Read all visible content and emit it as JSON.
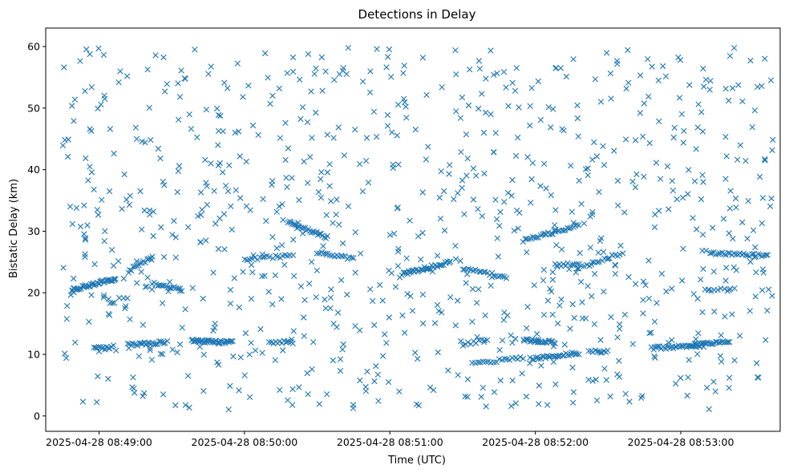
{
  "chart_data": {
    "type": "scatter",
    "title": "Detections in Delay",
    "xlabel": "Time (UTC)",
    "ylabel": "Bistatic Delay (km)",
    "marker": "x",
    "color": "#1f77b4",
    "grid": false,
    "legend": null,
    "xlim": [
      "2025-04-28 08:48:38",
      "2025-04-28 08:53:41"
    ],
    "ylim": [
      -2.5,
      63
    ],
    "xticks": [
      "2025-04-28 08:49:00",
      "2025-04-28 08:50:00",
      "2025-04-28 08:51:00",
      "2025-04-28 08:52:00",
      "2025-04-28 08:53:00"
    ],
    "yticks": [
      0,
      10,
      20,
      30,
      40,
      50,
      60
    ],
    "series": [
      {
        "tracks": [
          {
            "start": "2025-04-28 08:48:49",
            "end": "2025-04-28 08:49:07",
            "y0": 20.5,
            "y1": 22.3,
            "count": 40
          },
          {
            "start": "2025-04-28 08:48:58",
            "end": "2025-04-28 08:49:05",
            "y0": 11.0,
            "y1": 11.0,
            "count": 12
          },
          {
            "start": "2025-04-28 08:49:12",
            "end": "2025-04-28 08:49:28",
            "y0": 11.5,
            "y1": 12.0,
            "count": 25
          },
          {
            "start": "2025-04-28 08:49:12",
            "end": "2025-04-28 08:49:22",
            "y0": 23.5,
            "y1": 25.8,
            "count": 15
          },
          {
            "start": "2025-04-28 08:49:22",
            "end": "2025-04-28 08:49:34",
            "y0": 21.5,
            "y1": 20.5,
            "count": 18
          },
          {
            "start": "2025-04-28 08:49:38",
            "end": "2025-04-28 08:49:55",
            "y0": 12.2,
            "y1": 12.0,
            "count": 40
          },
          {
            "start": "2025-04-28 08:50:00",
            "end": "2025-04-28 08:50:20",
            "y0": 25.5,
            "y1": 26.0,
            "count": 20
          },
          {
            "start": "2025-04-28 08:50:10",
            "end": "2025-04-28 08:50:20",
            "y0": 12.0,
            "y1": 12.0,
            "count": 12
          },
          {
            "start": "2025-04-28 08:50:18",
            "end": "2025-04-28 08:50:34",
            "y0": 31.5,
            "y1": 29.0,
            "count": 28
          },
          {
            "start": "2025-04-28 08:50:30",
            "end": "2025-04-28 08:50:45",
            "y0": 26.5,
            "y1": 25.5,
            "count": 18
          },
          {
            "start": "2025-04-28 08:51:05",
            "end": "2025-04-28 08:51:25",
            "y0": 23.0,
            "y1": 25.0,
            "count": 35
          },
          {
            "start": "2025-04-28 08:51:30",
            "end": "2025-04-28 08:51:40",
            "y0": 11.5,
            "y1": 12.5,
            "count": 10
          },
          {
            "start": "2025-04-28 08:51:30",
            "end": "2025-04-28 08:51:48",
            "y0": 24.0,
            "y1": 22.5,
            "count": 22
          },
          {
            "start": "2025-04-28 08:51:34",
            "end": "2025-04-28 08:51:55",
            "y0": 8.5,
            "y1": 9.5,
            "count": 20
          },
          {
            "start": "2025-04-28 08:51:55",
            "end": "2025-04-28 08:52:08",
            "y0": 12.3,
            "y1": 12.0,
            "count": 25
          },
          {
            "start": "2025-04-28 08:51:55",
            "end": "2025-04-28 08:52:18",
            "y0": 28.5,
            "y1": 31.0,
            "count": 30
          },
          {
            "start": "2025-04-28 08:51:58",
            "end": "2025-04-28 08:52:18",
            "y0": 9.3,
            "y1": 10.2,
            "count": 30
          },
          {
            "start": "2025-04-28 08:52:08",
            "end": "2025-04-28 08:52:18",
            "y0": 24.5,
            "y1": 24.8,
            "count": 12
          },
          {
            "start": "2025-04-28 08:52:18",
            "end": "2025-04-28 08:52:36",
            "y0": 24.0,
            "y1": 26.5,
            "count": 18
          },
          {
            "start": "2025-04-28 08:52:22",
            "end": "2025-04-28 08:52:30",
            "y0": 10.5,
            "y1": 10.5,
            "count": 10
          },
          {
            "start": "2025-04-28 08:52:48",
            "end": "2025-04-28 08:53:10",
            "y0": 11.0,
            "y1": 11.5,
            "count": 35
          },
          {
            "start": "2025-04-28 08:53:05",
            "end": "2025-04-28 08:53:20",
            "y0": 11.5,
            "y1": 12.0,
            "count": 25
          },
          {
            "start": "2025-04-28 08:53:12",
            "end": "2025-04-28 08:53:36",
            "y0": 26.5,
            "y1": 26.0,
            "count": 30
          },
          {
            "start": "2025-04-28 08:53:10",
            "end": "2025-04-28 08:53:22",
            "y0": 20.5,
            "y1": 20.5,
            "count": 10
          }
        ],
        "scatter": {
          "start": "2025-04-28 08:48:45",
          "end": "2025-04-28 08:53:38",
          "ymin": 1,
          "ymax": 60,
          "count": 900
        }
      }
    ]
  }
}
